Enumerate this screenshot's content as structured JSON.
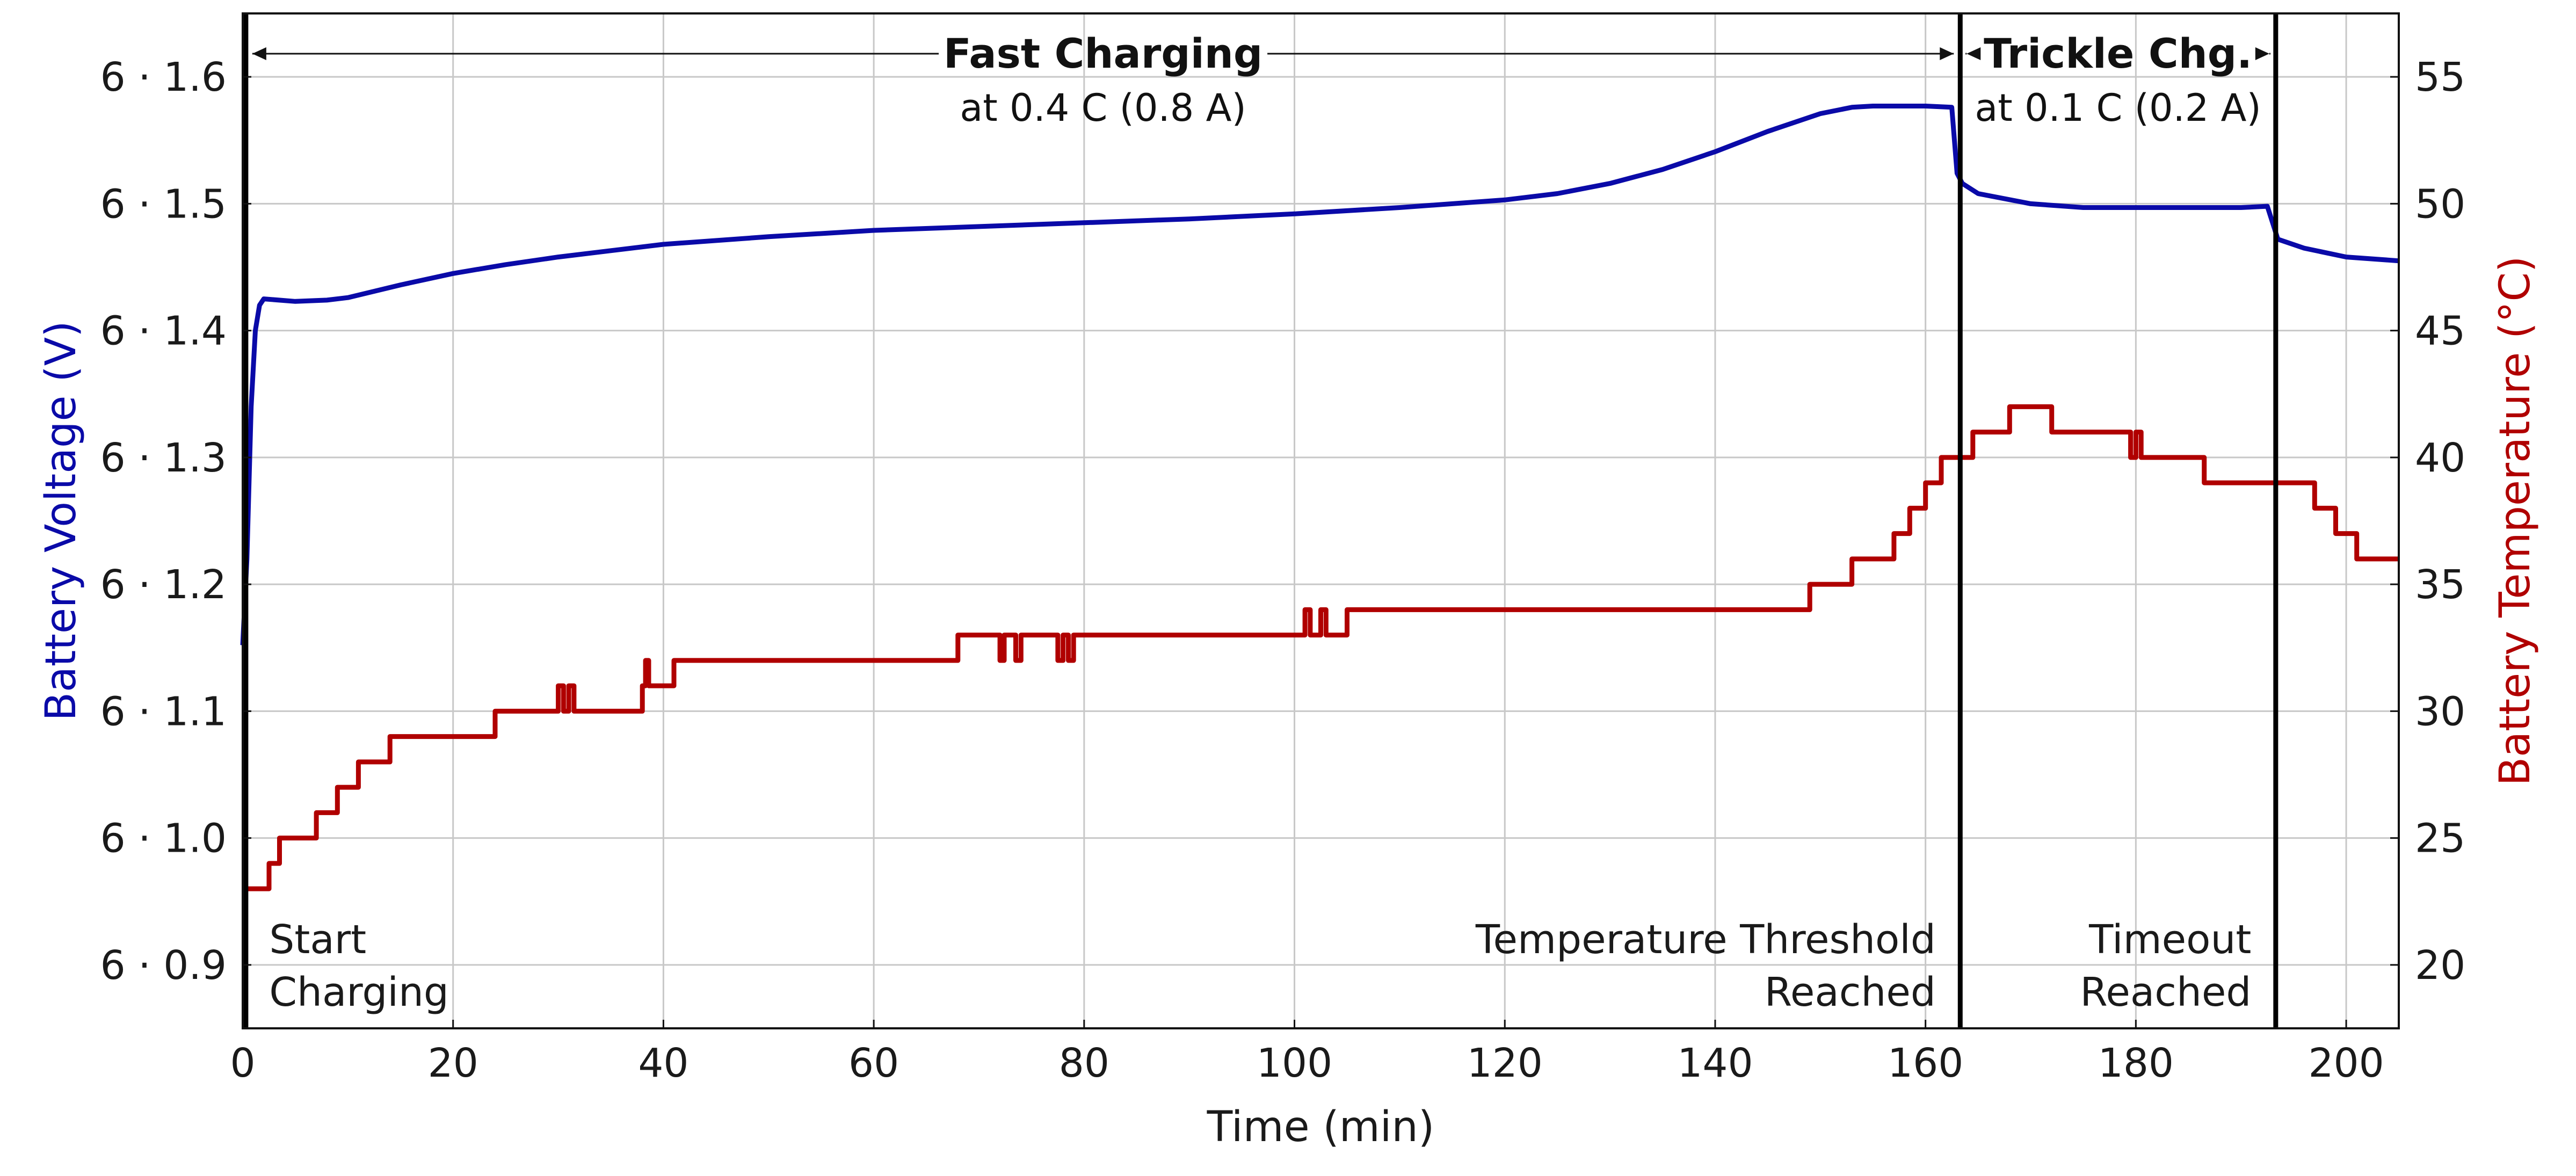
{
  "chart_data": {
    "type": "line",
    "xlabel": "Time (min)",
    "ylabel_left": "Battery Voltage (V)",
    "ylabel_right": "Battery Temperature (°C)",
    "xlim": [
      0,
      205
    ],
    "ylim_left": [
      6.85,
      6.65
    ],
    "ylim_left_note": "",
    "ylim": [
      0.85,
      1.65
    ],
    "y2lim": [
      17.5,
      57.5
    ],
    "grid": true,
    "x_ticks": [
      "0",
      "20",
      "40",
      "60",
      "80",
      "100",
      "120",
      "140",
      "160",
      "180",
      "200"
    ],
    "x_tick_values": [
      0,
      20,
      40,
      60,
      80,
      100,
      120,
      140,
      160,
      180,
      200
    ],
    "y_ticks_left": [
      "6 · 0.9",
      "6 · 1.0",
      "6 · 1.1",
      "6 · 1.2",
      "6 · 1.3",
      "6 · 1.4",
      "6 · 1.5",
      "6 · 1.6"
    ],
    "y_tick_values_left": [
      0.9,
      1.0,
      1.1,
      1.2,
      1.3,
      1.4,
      1.5,
      1.6
    ],
    "y_ticks_right": [
      "20",
      "25",
      "30",
      "35",
      "40",
      "45",
      "50",
      "55"
    ],
    "y_tick_values_right": [
      20,
      25,
      30,
      35,
      40,
      45,
      50,
      55
    ],
    "series": [
      {
        "name": "Battery Voltage",
        "axis": "left",
        "color": "#0a0aa8",
        "x": [
          0,
          0.4,
          0.8,
          1.2,
          1.6,
          2,
          5,
          8,
          10,
          15,
          20,
          25,
          30,
          40,
          50,
          60,
          70,
          80,
          90,
          100,
          110,
          120,
          125,
          130,
          135,
          140,
          145,
          150,
          153,
          155,
          160,
          162.5,
          163,
          163.5,
          165,
          170,
          175,
          185,
          190,
          192.5,
          193.5,
          196,
          200,
          205
        ],
        "y": [
          1.152,
          1.22,
          1.34,
          1.4,
          1.42,
          1.425,
          1.423,
          1.424,
          1.426,
          1.436,
          1.445,
          1.452,
          1.458,
          1.468,
          1.474,
          1.479,
          1.482,
          1.485,
          1.488,
          1.492,
          1.497,
          1.503,
          1.508,
          1.516,
          1.527,
          1.541,
          1.557,
          1.571,
          1.576,
          1.577,
          1.577,
          1.576,
          1.524,
          1.516,
          1.508,
          1.5,
          1.497,
          1.497,
          1.497,
          1.498,
          1.472,
          1.465,
          1.458,
          1.455
        ]
      },
      {
        "name": "Battery Temperature",
        "axis": "right",
        "color": "#b00000",
        "x": [
          0,
          2.5,
          3.5,
          7,
          9,
          11,
          14,
          24,
          30,
          30.5,
          31,
          31.5,
          38,
          38.3,
          38.6,
          41,
          68,
          72,
          72.4,
          73.5,
          74,
          77.5,
          78,
          78.5,
          79,
          101,
          101.5,
          102.5,
          103,
          104.5,
          105,
          149,
          153,
          157,
          158.5,
          160,
          161.5,
          163,
          164.5,
          168,
          172,
          174.5,
          179,
          179.5,
          180,
          180.5,
          181.5,
          186.5,
          190,
          195,
          197,
          199,
          201,
          205
        ],
        "y": [
          23,
          24,
          25,
          26,
          27,
          28,
          29,
          30,
          31,
          30,
          31,
          30,
          31,
          32,
          31,
          32,
          33,
          32,
          33,
          32,
          33,
          32,
          33,
          32,
          33,
          34,
          33,
          34,
          33,
          33,
          34,
          35,
          36,
          37,
          38,
          39,
          40,
          40,
          41,
          42,
          41,
          41,
          41,
          40,
          41,
          40,
          40,
          39,
          39,
          39,
          38,
          37,
          36,
          36
        ]
      }
    ],
    "vertical_lines_x": [
      0.3,
      163.3,
      193.3
    ],
    "phases": [
      {
        "title": "Fast Charging",
        "subtitle": "at 0.4 C (0.8 A)",
        "x_start": 0.3,
        "x_end": 163.3
      },
      {
        "title": "Trickle Chg.",
        "subtitle": "at 0.1 C (0.2 A)",
        "x_start": 163.3,
        "x_end": 193.3
      }
    ],
    "annotations": [
      {
        "lines": [
          "Start",
          "Charging"
        ],
        "x": 1.5,
        "anchor": "start"
      },
      {
        "lines": [
          "Temperature Threshold",
          "Reached"
        ],
        "x": 162,
        "anchor": "end"
      },
      {
        "lines": [
          "Timeout",
          "Reached"
        ],
        "x": 192,
        "anchor": "end"
      }
    ]
  }
}
